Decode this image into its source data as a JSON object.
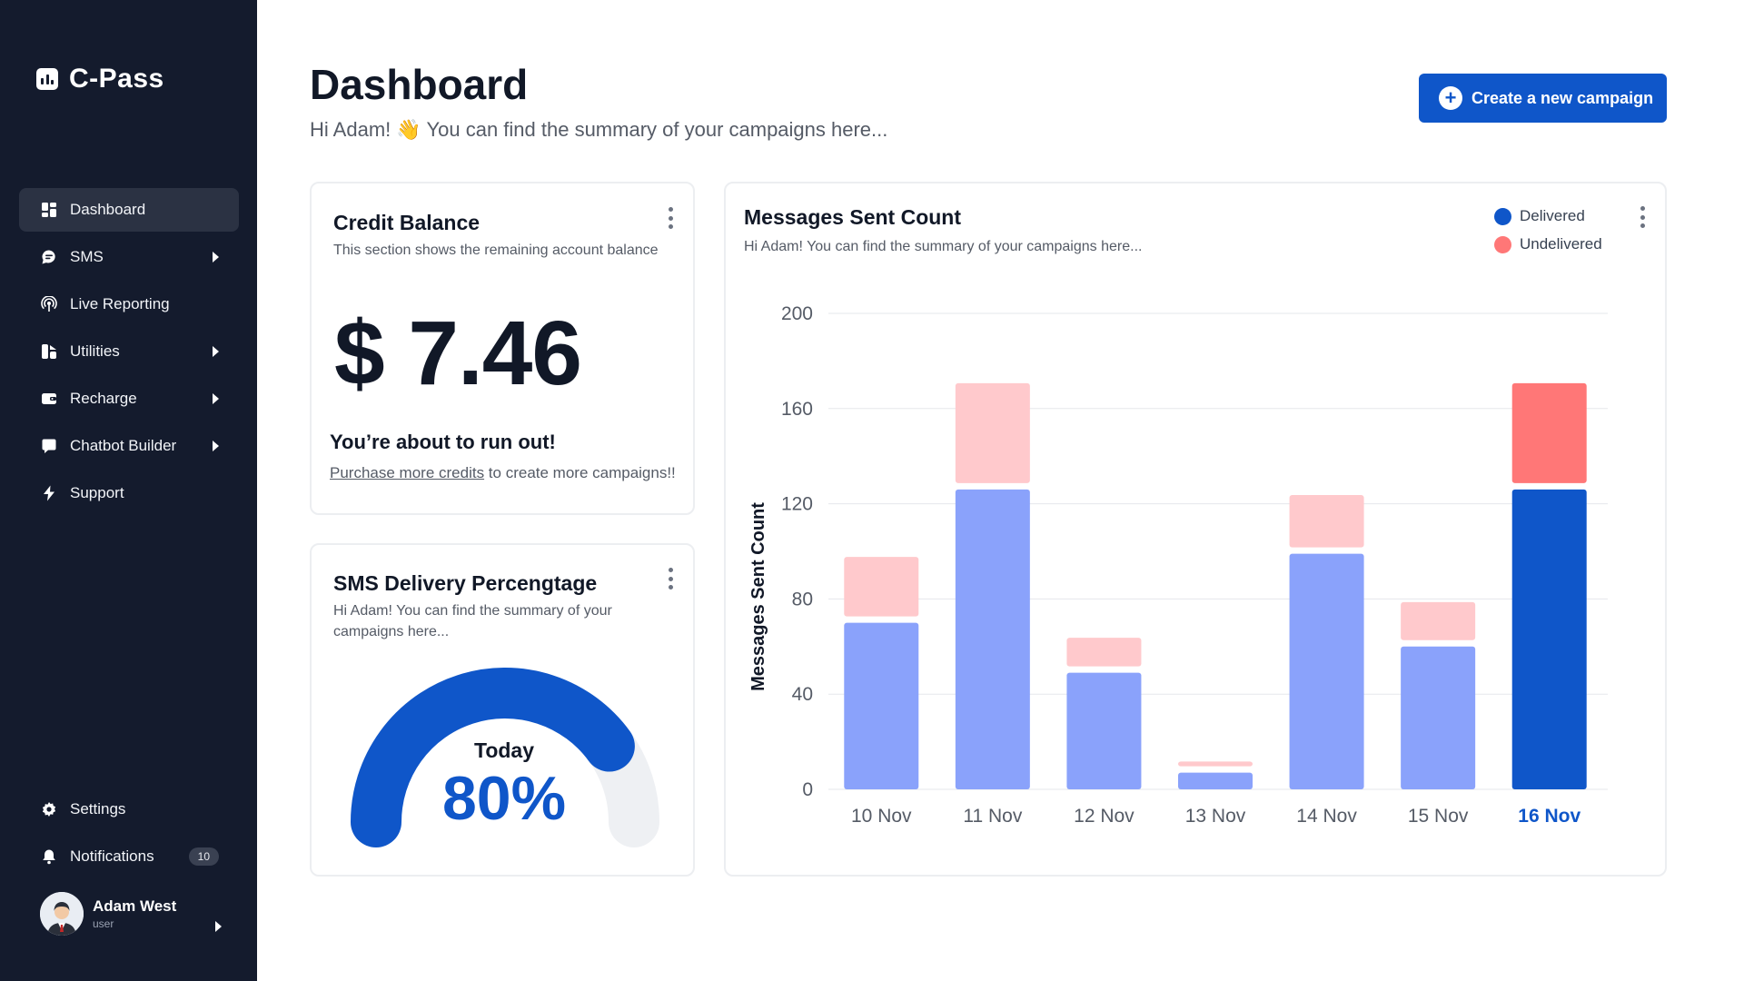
{
  "app": {
    "name": "C-Pass"
  },
  "sidebar": {
    "items": [
      {
        "label": "Dashboard",
        "icon": "dashboard-icon",
        "active": true,
        "has_submenu": false
      },
      {
        "label": "SMS",
        "icon": "chat-icon",
        "active": false,
        "has_submenu": true
      },
      {
        "label": "Live Reporting",
        "icon": "broadcast-icon",
        "active": false,
        "has_submenu": false
      },
      {
        "label": "Utilities",
        "icon": "utilities-icon",
        "active": false,
        "has_submenu": true
      },
      {
        "label": "Recharge",
        "icon": "wallet-icon",
        "active": false,
        "has_submenu": true
      },
      {
        "label": "Chatbot Builder",
        "icon": "chatbot-icon",
        "active": false,
        "has_submenu": true
      },
      {
        "label": "Support",
        "icon": "lightning-icon",
        "active": false,
        "has_submenu": false
      }
    ],
    "bottom": {
      "settings_label": "Settings",
      "notifications_label": "Notifications",
      "notifications_count": "10"
    },
    "user": {
      "name": "Adam West",
      "role": "user"
    }
  },
  "header": {
    "title": "Dashboard",
    "subtitle": "Hi Adam! 👋 You can find the summary of your campaigns here...",
    "create_button": "Create a new campaign"
  },
  "credit_card": {
    "title": "Credit Balance",
    "subtitle": "This section shows the remaining account balance",
    "amount": "$ 7.46",
    "warning": "You’re about to run out!",
    "purchase_link": "Purchase more credits",
    "purchase_rest": " to create more campaigns!!"
  },
  "delivery_card": {
    "title": "SMS Delivery Percengtage",
    "subtitle": "Hi Adam! You can find the summary of your campaigns here...",
    "gauge_label": "Today",
    "gauge_value": "80%",
    "gauge_fraction": 0.8
  },
  "messages_card": {
    "title": "Messages Sent Count",
    "subtitle": "Hi Adam! You can find the summary of your campaigns here..."
  },
  "colors": {
    "accent": "#0f56c9",
    "delivered": "#0f56c9",
    "undelivered": "#ff7777",
    "delivered_muted": "#8aa2fb",
    "undelivered_muted": "#ffc9cc",
    "sidebar_bg": "#141b2d"
  },
  "chart_data": {
    "type": "bar",
    "stacked": true,
    "categories": [
      "10 Nov",
      "11 Nov",
      "12 Nov",
      "13 Nov",
      "14 Nov",
      "15 Nov",
      "16 Nov"
    ],
    "series": [
      {
        "name": "Delivered",
        "values": [
          70,
          126,
          49,
          7,
          99,
          60,
          126
        ]
      },
      {
        "name": "Undelivered",
        "values": [
          25,
          42,
          12,
          2,
          22,
          16,
          42
        ]
      }
    ],
    "highlighted_category": "16 Nov",
    "ylabel": "Messages Sent Count",
    "xlabel": "",
    "ylim": [
      0,
      200
    ],
    "yticks": [
      0,
      40,
      80,
      120,
      160,
      200
    ],
    "grid": true,
    "legend": "top-right"
  }
}
